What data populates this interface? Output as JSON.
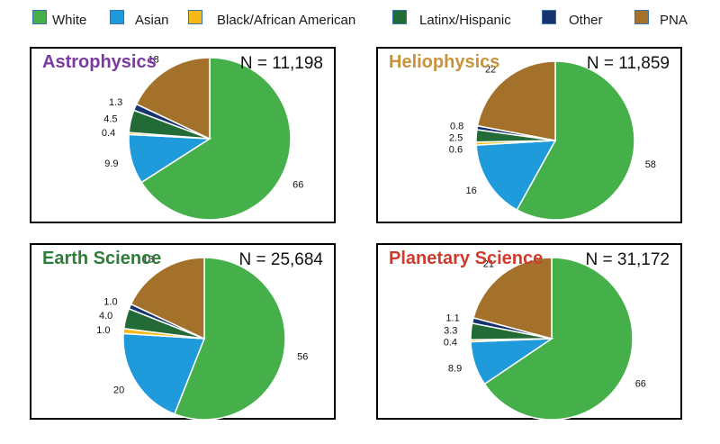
{
  "legend": [
    {
      "label": "White",
      "color": "#45b04a"
    },
    {
      "label": "Asian",
      "color": "#1f9bdc"
    },
    {
      "label": "Black/African American",
      "color": "#f7b917"
    },
    {
      "label": "Latinx/Hispanic",
      "color": "#236b36"
    },
    {
      "label": "Other",
      "color": "#17346e"
    },
    {
      "label": "PNA",
      "color": "#a4712a"
    }
  ],
  "chart_data": [
    {
      "type": "pie",
      "title": "Astrophysics",
      "title_color": "#7b3aa2",
      "n_label": "N = 11,198",
      "categories": [
        "White",
        "Asian",
        "Black/African American",
        "Latinx/Hispanic",
        "Other",
        "PNA"
      ],
      "values": [
        66,
        9.9,
        0.4,
        4.5,
        1.3,
        18
      ],
      "labels": [
        "66",
        "9.9",
        "0.4",
        "4.5",
        "1.3",
        "18"
      ]
    },
    {
      "type": "pie",
      "title": "Heliophysics",
      "title_color": "#c9923c",
      "n_label": "N = 11,859",
      "categories": [
        "White",
        "Asian",
        "Black/African American",
        "Latinx/Hispanic",
        "Other",
        "PNA"
      ],
      "values": [
        58,
        16,
        0.6,
        2.5,
        0.8,
        22
      ],
      "labels": [
        "58",
        "16",
        "0.6",
        "2.5",
        "0.8",
        "22"
      ]
    },
    {
      "type": "pie",
      "title": "Earth Science",
      "title_color": "#2e7d3a",
      "n_label": "N = 25,684",
      "categories": [
        "White",
        "Asian",
        "Black/African American",
        "Latinx/Hispanic",
        "Other",
        "PNA"
      ],
      "values": [
        56,
        20,
        1.0,
        4.0,
        1.0,
        18
      ],
      "labels": [
        "56",
        "20",
        "1.0",
        "4.0",
        "1.0",
        "18"
      ]
    },
    {
      "type": "pie",
      "title": "Planetary Science",
      "title_color": "#d03a2c",
      "n_label": "N = 31,172",
      "categories": [
        "White",
        "Asian",
        "Black/African American",
        "Latinx/Hispanic",
        "Other",
        "PNA"
      ],
      "values": [
        66,
        8.9,
        0.4,
        3.3,
        1.1,
        21
      ],
      "labels": [
        "66",
        "8.9",
        "0.4",
        "3.3",
        "1.1",
        "21"
      ]
    }
  ]
}
